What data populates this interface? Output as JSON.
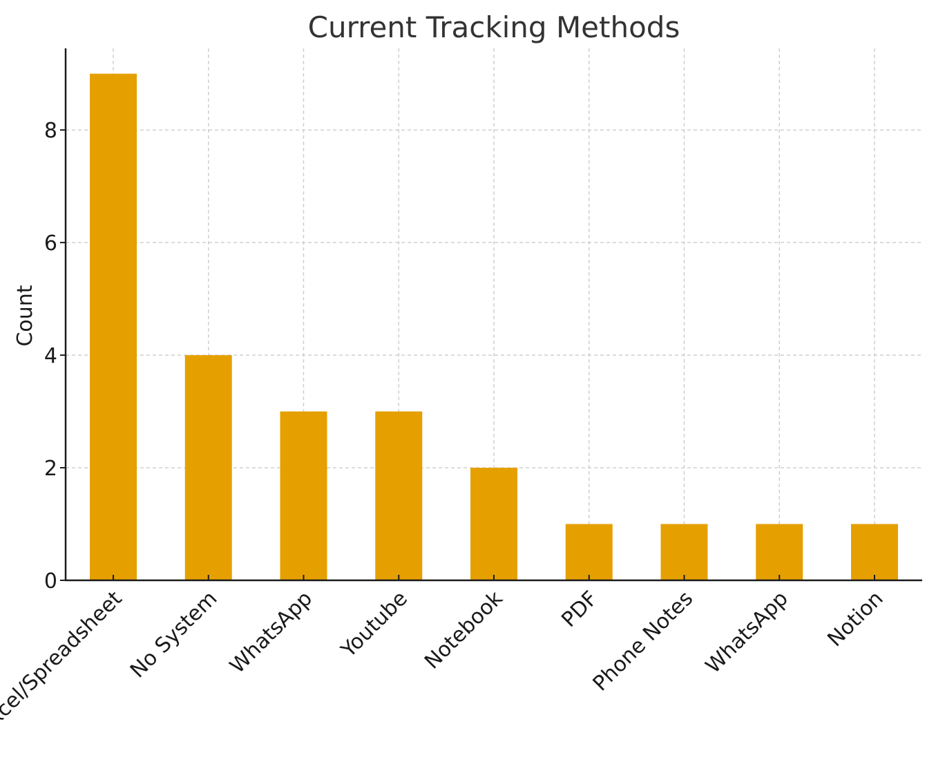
{
  "chart_data": {
    "type": "bar",
    "title": "Current Tracking Methods",
    "xlabel": "",
    "ylabel": "Count",
    "categories": [
      "Excel/Spreadsheet",
      "No System",
      "WhatsApp",
      "Youtube",
      "Notebook",
      "PDF",
      "Phone Notes",
      "WhatsApp",
      "Notion"
    ],
    "values": [
      9,
      4,
      3,
      3,
      2,
      1,
      1,
      1,
      1
    ],
    "ylim": [
      0,
      9.45
    ],
    "yticks": [
      0,
      2,
      4,
      6,
      8
    ],
    "grid": true,
    "bar_color": "#E5A000",
    "x_tick_rotation": 45
  }
}
